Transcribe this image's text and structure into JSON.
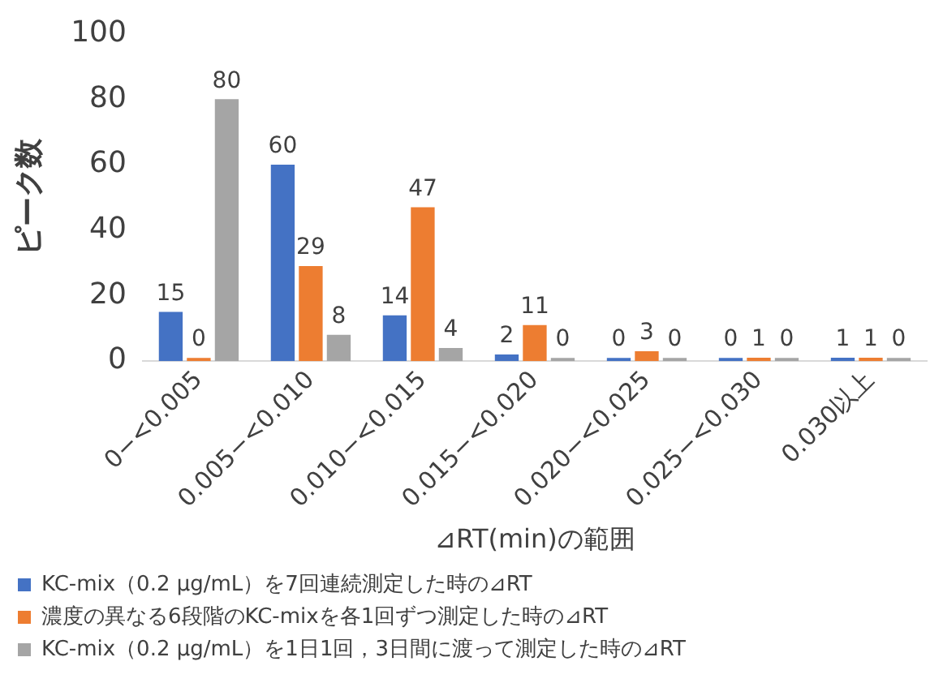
{
  "chart_data": {
    "type": "bar",
    "categories": [
      "0−<0.005",
      "0.005−<0.010",
      "0.010−<0.015",
      "0.015−<0.020",
      "0.020−<0.025",
      "0.025−<0.030",
      "0.030以上"
    ],
    "series": [
      {
        "name": "KC-mix（0.2 μg/mL）を7回連続測定した時の⊿RT",
        "color": "#4472c4",
        "values": [
          15,
          60,
          14,
          2,
          0,
          0,
          1
        ]
      },
      {
        "name": "濃度の異なる6段階のKC-mixを各1回ずつ測定した時の⊿RT",
        "color": "#ed7d31",
        "values": [
          0,
          29,
          47,
          11,
          3,
          1,
          1
        ]
      },
      {
        "name": "KC-mix（0.2 μg/mL）を1日1回，3日間に渡って測定した時の⊿RT",
        "color": "#a5a5a5",
        "values": [
          80,
          8,
          4,
          0,
          0,
          0,
          0
        ]
      }
    ],
    "xlabel": "⊿RT(min)の範囲",
    "ylabel": "ピーク数",
    "ylim": [
      0,
      100
    ],
    "yticks": [
      0,
      20,
      40,
      60,
      80,
      100
    ],
    "grid": false,
    "legend": "bottom",
    "data_labels": true
  }
}
